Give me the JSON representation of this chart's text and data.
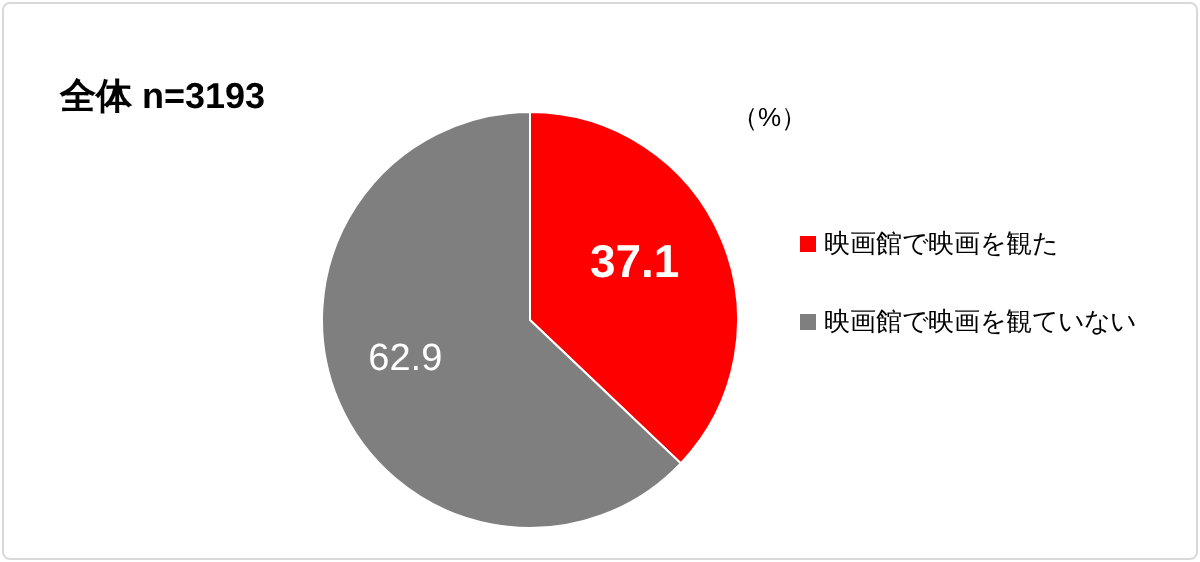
{
  "chart_data": {
    "type": "pie",
    "title": "全体 n=3193",
    "categories": [
      "映画館で映画を観た",
      "映画館で映画を観ていない"
    ],
    "values": [
      37.1,
      62.9
    ],
    "colors": [
      "#ff0000",
      "#7f7f7f"
    ],
    "data_labels": true,
    "legend": "right",
    "annotations": [
      "（%）"
    ]
  }
}
